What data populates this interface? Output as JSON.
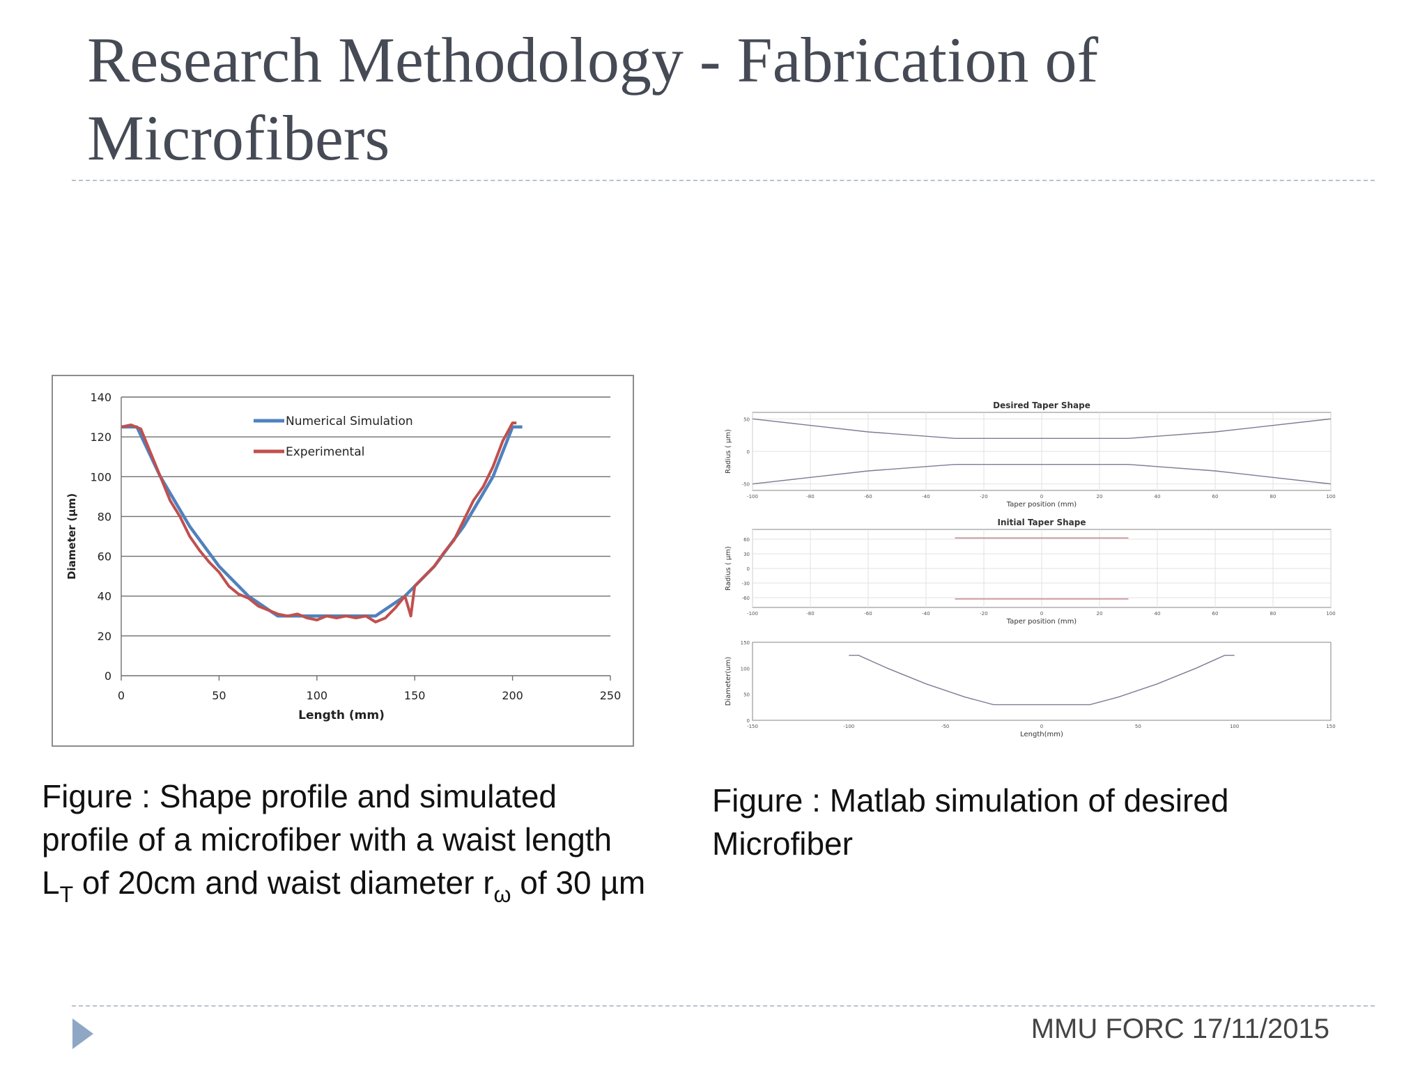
{
  "title": "Research Methodology - Fabrication of Microfibers",
  "captions": {
    "left": {
      "part1": "Figure : Shape profile and simulated profile of a microfiber with a waist length L",
      "sub_T": "T",
      "part2": " of 20cm and waist diameter r",
      "sub_w": "ω",
      "part3": " of 30 µm"
    },
    "right": "Figure : Matlab simulation of desired Microfiber"
  },
  "footer": "MMU FORC 17/11/2015",
  "colors": {
    "accent": "#8ea7c4",
    "simulation": "#4f81bd",
    "experimental": "#c0504d"
  },
  "chart_data": [
    {
      "type": "line",
      "xlabel": "Length (mm)",
      "ylabel": "Diameter (µm)",
      "xlim": [
        0,
        250
      ],
      "ylim": [
        0,
        140
      ],
      "xticks": [
        0,
        50,
        100,
        150,
        200,
        250
      ],
      "yticks": [
        0,
        20,
        40,
        60,
        80,
        100,
        120,
        140
      ],
      "grid": true,
      "legend": "top-center",
      "series": [
        {
          "name": "Numerical Simulation",
          "x": [
            0,
            8,
            20,
            35,
            50,
            65,
            80,
            100,
            120,
            130,
            145,
            160,
            175,
            190,
            200,
            205
          ],
          "y": [
            125,
            125,
            100,
            75,
            55,
            40,
            30,
            30,
            30,
            30,
            40,
            55,
            75,
            100,
            125,
            125
          ]
        },
        {
          "name": "Experimental",
          "x": [
            0,
            5,
            10,
            15,
            20,
            25,
            30,
            35,
            40,
            45,
            50,
            55,
            60,
            65,
            70,
            75,
            80,
            85,
            90,
            95,
            100,
            105,
            110,
            115,
            120,
            125,
            130,
            135,
            140,
            145,
            148,
            150,
            155,
            160,
            165,
            170,
            175,
            180,
            185,
            190,
            195,
            200,
            202
          ],
          "y": [
            125,
            126,
            124,
            112,
            100,
            88,
            80,
            70,
            63,
            57,
            52,
            45,
            41,
            39,
            35,
            33,
            31,
            30,
            31,
            29,
            28,
            30,
            29,
            30,
            29,
            30,
            27,
            29,
            34,
            40,
            30,
            45,
            50,
            55,
            62,
            68,
            78,
            88,
            95,
            105,
            118,
            127,
            127
          ]
        }
      ]
    },
    {
      "type": "line",
      "title": "Desired Taper Shape",
      "xlabel": "Taper position (mm)",
      "ylabel": "Radius ( µm)",
      "xlim": [
        -100,
        100
      ],
      "ylim": [
        -60,
        60
      ],
      "xticks": [
        -100,
        -80,
        -60,
        -40,
        -20,
        0,
        20,
        40,
        60,
        80,
        100
      ],
      "yticks": [
        -50,
        0,
        50
      ],
      "grid": true,
      "series": [
        {
          "x": [
            -100,
            -60,
            -30,
            0,
            30,
            60,
            100
          ],
          "y": [
            50,
            30,
            20,
            20,
            20,
            30,
            50
          ]
        },
        {
          "x": [
            -100,
            -60,
            -30,
            0,
            30,
            60,
            100
          ],
          "y": [
            -50,
            -30,
            -20,
            -20,
            -20,
            -30,
            -50
          ]
        }
      ]
    },
    {
      "type": "line",
      "title": "Initial Taper Shape",
      "xlabel": "Taper position (mm)",
      "ylabel": "Radius ( µm)",
      "xlim": [
        -100,
        100
      ],
      "ylim": [
        -80,
        80
      ],
      "xticks": [
        -100,
        -80,
        -60,
        -40,
        -20,
        0,
        20,
        40,
        60,
        80,
        100
      ],
      "yticks": [
        -60,
        -30,
        0,
        30,
        60
      ],
      "grid": true,
      "series": [
        {
          "x": [
            -30,
            30
          ],
          "y": [
            62.5,
            62.5
          ]
        },
        {
          "x": [
            -30,
            30
          ],
          "y": [
            -62.5,
            -62.5
          ]
        }
      ]
    },
    {
      "type": "line",
      "xlabel": "Length(mm)",
      "ylabel": "Diameter(um)",
      "xlim": [
        -150,
        150
      ],
      "ylim": [
        0,
        150
      ],
      "xticks": [
        -150,
        -100,
        -50,
        0,
        50,
        100,
        150
      ],
      "yticks": [
        0,
        50,
        100,
        150
      ],
      "grid": false,
      "series": [
        {
          "x": [
            -100,
            -95,
            -80,
            -60,
            -40,
            -25,
            25,
            40,
            60,
            80,
            95,
            100
          ],
          "y": [
            125,
            125,
            100,
            70,
            45,
            30,
            30,
            45,
            70,
            100,
            125,
            125
          ]
        }
      ]
    }
  ]
}
